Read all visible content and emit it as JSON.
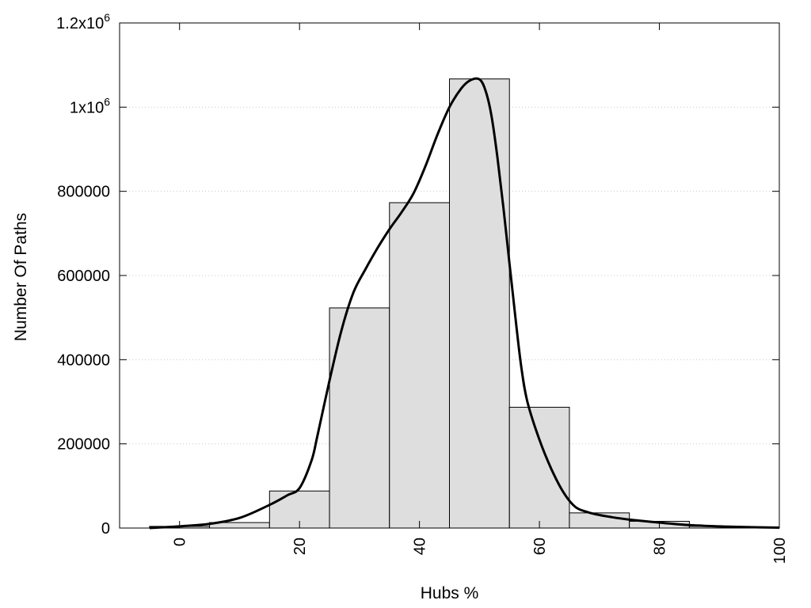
{
  "chart_data": {
    "type": "bar",
    "xlabel": "Hubs %",
    "ylabel": "Number Of Paths",
    "xlim": [
      -10,
      100
    ],
    "ylim": [
      0,
      1200000
    ],
    "grid": true,
    "bars": [
      {
        "x_start": -5,
        "x_end": 5,
        "value": 4000
      },
      {
        "x_start": 5,
        "x_end": 15,
        "value": 13000
      },
      {
        "x_start": 15,
        "x_end": 25,
        "value": 88000
      },
      {
        "x_start": 25,
        "x_end": 35,
        "value": 523000
      },
      {
        "x_start": 35,
        "x_end": 45,
        "value": 773000
      },
      {
        "x_start": 45,
        "x_end": 55,
        "value": 1067000
      },
      {
        "x_start": 55,
        "x_end": 65,
        "value": 287000
      },
      {
        "x_start": 65,
        "x_end": 75,
        "value": 36000
      },
      {
        "x_start": 75,
        "x_end": 85,
        "value": 16000
      },
      {
        "x_start": 85,
        "x_end": 95,
        "value": 4000
      }
    ],
    "fit_curve": {
      "x": [
        -5,
        0,
        5,
        10,
        15,
        18,
        20,
        22,
        23,
        25,
        27,
        29,
        31,
        33,
        35,
        37,
        39,
        41,
        43,
        45,
        47,
        48.5,
        50,
        51,
        52,
        53,
        54,
        55,
        56,
        57,
        58,
        60,
        62,
        64,
        66,
        68,
        70,
        72,
        75,
        80,
        85,
        90,
        95,
        100
      ],
      "y": [
        0,
        4000,
        10000,
        24000,
        55000,
        78000,
        95000,
        160000,
        220000,
        350000,
        470000,
        560000,
        615000,
        665000,
        710000,
        750000,
        795000,
        860000,
        935000,
        1000000,
        1045000,
        1064000,
        1066000,
        1040000,
        980000,
        880000,
        760000,
        630000,
        500000,
        380000,
        300000,
        210000,
        140000,
        85000,
        50000,
        38000,
        31000,
        26000,
        20000,
        13000,
        7000,
        4000,
        2000,
        1000
      ]
    },
    "x_ticks": [
      {
        "value": 0,
        "label": "0"
      },
      {
        "value": 20,
        "label": "20"
      },
      {
        "value": 40,
        "label": "40"
      },
      {
        "value": 60,
        "label": "60"
      },
      {
        "value": 80,
        "label": "80"
      },
      {
        "value": 100,
        "label": "100"
      }
    ],
    "y_ticks": [
      {
        "value": 0,
        "label": "0",
        "sup": ""
      },
      {
        "value": 200000,
        "label": "200000",
        "sup": ""
      },
      {
        "value": 400000,
        "label": "400000",
        "sup": ""
      },
      {
        "value": 600000,
        "label": "600000",
        "sup": ""
      },
      {
        "value": 800000,
        "label": "800000",
        "sup": ""
      },
      {
        "value": 1000000,
        "label": "1x10",
        "sup": "6"
      },
      {
        "value": 1200000,
        "label": "1.2x10",
        "sup": "6"
      }
    ],
    "colors": {
      "bar_fill": "#dedede",
      "bar_stroke": "#000000",
      "curve": "#000000",
      "grid": "#c8c8c8"
    }
  }
}
